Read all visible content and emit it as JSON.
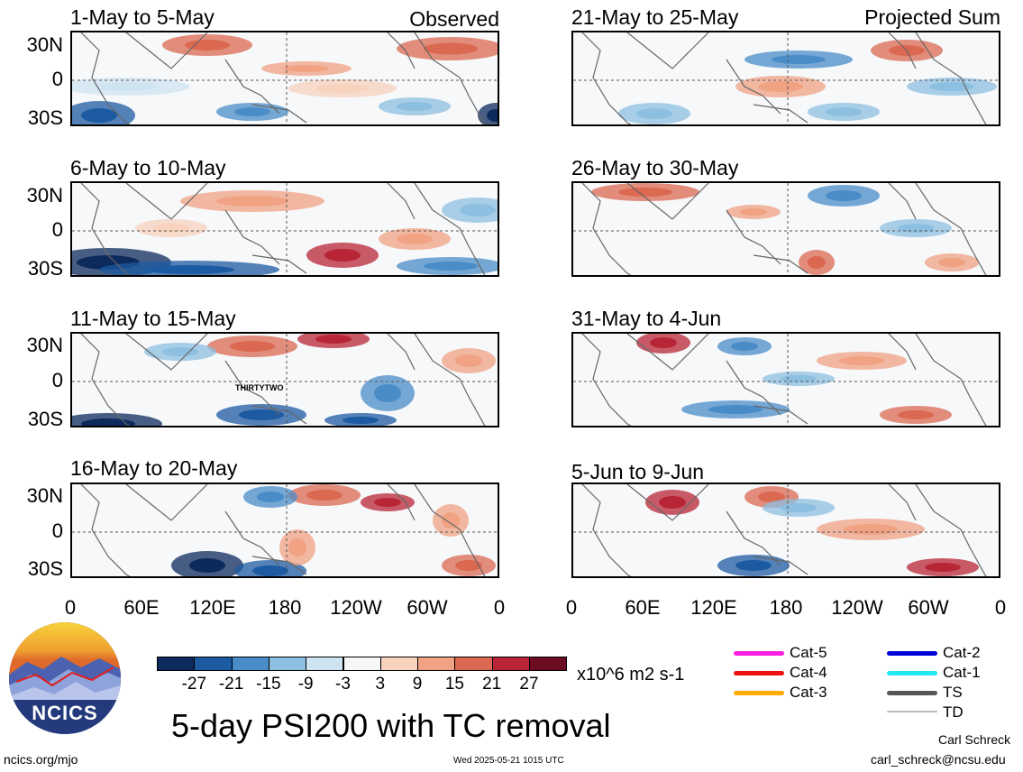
{
  "header": {
    "left_tag": "Observed",
    "right_tag": "Projected Sum"
  },
  "panels_left": [
    {
      "title": "1-May to 5-May"
    },
    {
      "title": "6-May to 10-May"
    },
    {
      "title": "11-May to 15-May",
      "storm_label": "THIRTYTWO"
    },
    {
      "title": "16-May to 20-May"
    }
  ],
  "panels_right": [
    {
      "title": "21-May to 25-May"
    },
    {
      "title": "26-May to 30-May"
    },
    {
      "title": "31-May to 4-Jun"
    },
    {
      "title": "5-Jun to 9-Jun"
    }
  ],
  "lat_labels": [
    "30N",
    "0",
    "30S"
  ],
  "lon_labels": [
    "0",
    "60E",
    "120E",
    "180",
    "120W",
    "60W",
    "0"
  ],
  "colorbar": {
    "colors": [
      "#0d2a5c",
      "#1c5aa1",
      "#4a8cc7",
      "#8cbfe0",
      "#cfe4f1",
      "#f7f7f7",
      "#f7d2bd",
      "#f0a283",
      "#db6850",
      "#b82536",
      "#6c0c22"
    ],
    "ticks": [
      "-27",
      "-21",
      "-15",
      "-9",
      "-3",
      "3",
      "9",
      "15",
      "21",
      "27"
    ],
    "units": "x10^6 m2 s-1"
  },
  "legend": [
    {
      "label": "Cat-5",
      "color": "#ff1fe0"
    },
    {
      "label": "Cat-4",
      "color": "#ee1111"
    },
    {
      "label": "Cat-3",
      "color": "#ffaa00"
    },
    {
      "label": "Cat-2",
      "color": "#0000d8"
    },
    {
      "label": "Cat-1",
      "color": "#22e8f0"
    },
    {
      "label": "TS",
      "color": "#555555"
    },
    {
      "label": "TD",
      "color": "#bbbbbb"
    }
  ],
  "main_title": "5-day PSI200 with TC removal",
  "logo_text": "NCICS",
  "footer": {
    "left": "ncics.org/mjo",
    "center": "Wed 2025-05-21 1015 UTC",
    "author": "Carl Schreck",
    "email": "carl_schreck@ncsu.edu"
  }
}
